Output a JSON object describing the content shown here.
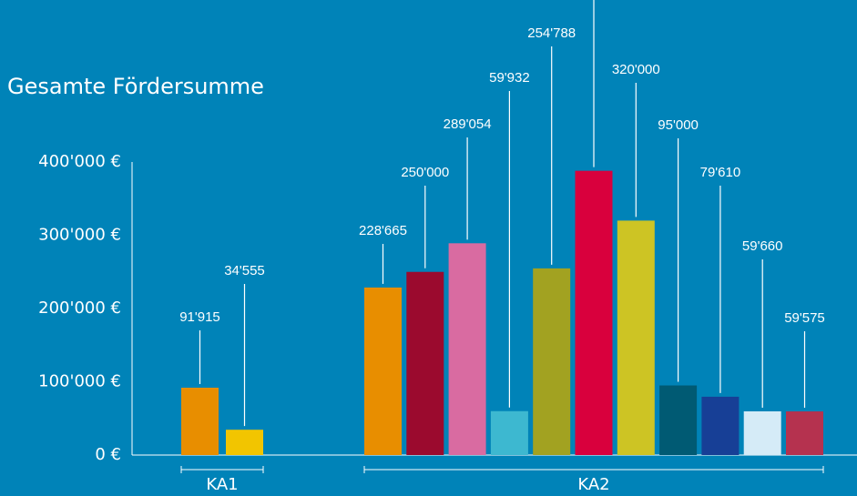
{
  "chart_data": {
    "type": "bar",
    "title": "Gesamte Fördersumme",
    "ylim": [
      0,
      400000
    ],
    "yticks": [
      {
        "value": 0,
        "label": "0 €"
      },
      {
        "value": 100000,
        "label": "100'000 €"
      },
      {
        "value": 200000,
        "label": "200'000 €"
      },
      {
        "value": 300000,
        "label": "300'000 €"
      },
      {
        "value": 400000,
        "label": "400'000 €"
      }
    ],
    "groups": [
      {
        "name": "KA1",
        "values": [
          91915,
          34555
        ],
        "value_labels": [
          "91'915",
          "34'555"
        ],
        "colors": [
          "#e88e00",
          "#f2c500"
        ]
      },
      {
        "name": "KA2",
        "values": [
          228665,
          250000,
          289054,
          59932,
          254788,
          388000,
          320000,
          95000,
          79610,
          59660,
          59575
        ],
        "value_labels": [
          "228'665",
          "250'000",
          "289'054",
          "59'932",
          "254'788",
          null,
          "320'000",
          "95'000",
          "79'610",
          "59'660",
          "59'575"
        ],
        "colors": [
          "#e88e00",
          "#9b0a2e",
          "#d96ba1",
          "#3db8d0",
          "#a2a221",
          "#d9003d",
          "#cdc424",
          "#005a73",
          "#173f96",
          "#d5ebf7",
          "#b5324f"
        ]
      }
    ]
  }
}
